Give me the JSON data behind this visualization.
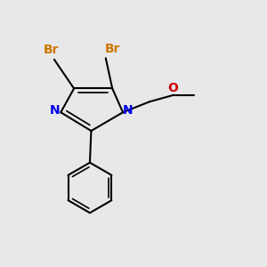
{
  "bg_color": "#e8e8eb",
  "colors": {
    "N": "#0000ee",
    "Br": "#cc7700",
    "O": "#cc0000",
    "C": "#000000",
    "bond": "#000000"
  },
  "font_size": 10,
  "bond_width": 1.5
}
